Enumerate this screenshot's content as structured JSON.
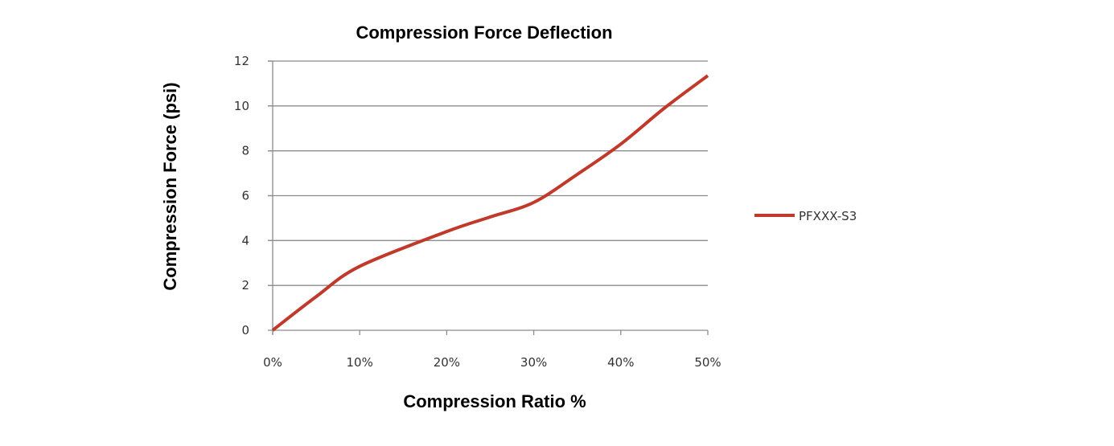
{
  "chart_data": {
    "type": "line",
    "title": "Compression Force Deflection",
    "xlabel": "Compression Ratio %",
    "ylabel": "Compression Force  (psi)",
    "x": [
      0,
      5,
      10,
      20,
      25,
      30,
      35,
      40,
      45,
      50
    ],
    "x_ticks": [
      "0%",
      "10%",
      "20%",
      "30%",
      "40%",
      "50%"
    ],
    "x_tick_values": [
      0,
      10,
      20,
      30,
      40,
      50
    ],
    "y_ticks": [
      "0",
      "2",
      "4",
      "6",
      "8",
      "10",
      "12"
    ],
    "y_tick_values": [
      0,
      2,
      4,
      6,
      8,
      10,
      12
    ],
    "xlim": [
      0,
      50
    ],
    "ylim": [
      0,
      12
    ],
    "grid": "horizontal",
    "legend_position": "right",
    "series": [
      {
        "name": "PFXXX-S3",
        "color": "#c0392b",
        "values": [
          0,
          1.5,
          2.85,
          4.4,
          5.05,
          5.7,
          6.95,
          8.3,
          9.9,
          11.35
        ]
      }
    ]
  }
}
